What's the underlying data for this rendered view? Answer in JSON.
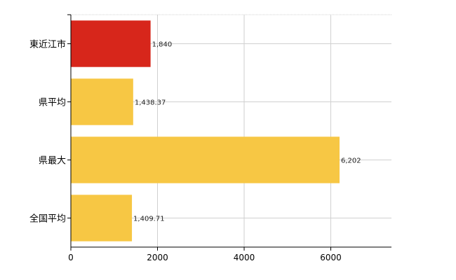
{
  "chart_data": {
    "type": "bar",
    "orientation": "horizontal",
    "categories": [
      "東近江市",
      "県平均",
      "県最大",
      "全国平均"
    ],
    "values": [
      1840,
      1438.37,
      6202,
      1409.71
    ],
    "value_labels": [
      "1,840",
      "1,438.37",
      "6,202",
      "1,409.71"
    ],
    "bar_colors": [
      "#d7261b",
      "#f7c744",
      "#f7c744",
      "#f7c744"
    ],
    "xlim": [
      0,
      7400
    ],
    "xticks": [
      0,
      2000,
      4000,
      6000
    ],
    "xtick_labels": [
      "0",
      "2000",
      "4000",
      "6000"
    ],
    "grid": true,
    "axis_color": "#000000",
    "grid_color": "#d0d0d0"
  }
}
